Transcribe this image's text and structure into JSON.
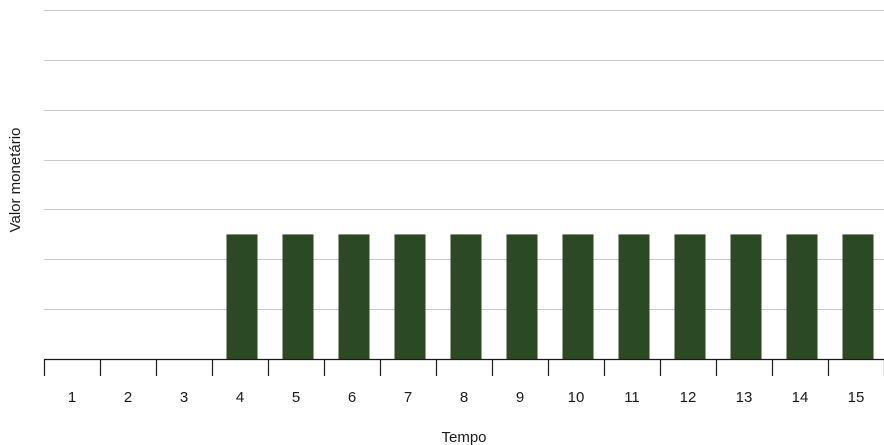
{
  "chart_data": {
    "type": "bar",
    "title": "",
    "xlabel": "Tempo",
    "ylabel": "Valor monetário",
    "categories": [
      "1",
      "2",
      "3",
      "4",
      "5",
      "6",
      "7",
      "8",
      "9",
      "10",
      "11",
      "12",
      "13",
      "14",
      "15"
    ],
    "values": [
      0,
      0,
      0,
      2.5,
      2.5,
      2.5,
      2.5,
      2.5,
      2.5,
      2.5,
      2.5,
      2.5,
      2.5,
      2.5,
      2.5
    ],
    "ylim": [
      0,
      7
    ],
    "grid": true,
    "y_tick_labels_shown": false,
    "bar_color": "#2b4a23",
    "grid_color": "#c8c8c8"
  }
}
